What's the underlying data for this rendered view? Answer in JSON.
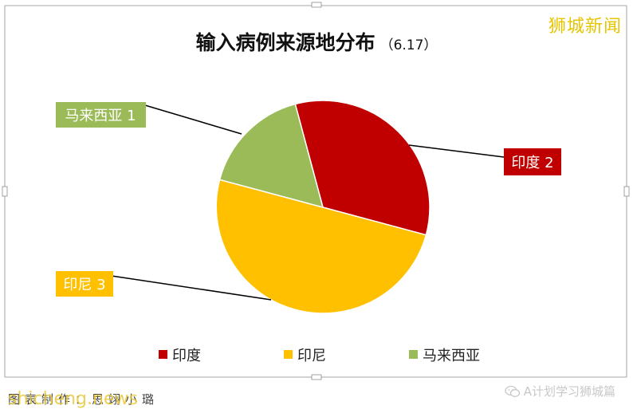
{
  "chart_data": {
    "type": "pie",
    "title": "输入病例来源地分布",
    "subtitle": "（6.17）",
    "categories": [
      "印度",
      "印尼",
      "马来西亚"
    ],
    "values": [
      2,
      3,
      1
    ],
    "callouts": [
      "印度 2",
      "印尼 3",
      "马来西亚 1"
    ],
    "legend_position": "bottom"
  },
  "colors": {
    "india": "#c00000",
    "indonesia": "#ffc000",
    "malaysia": "#9bbb59"
  },
  "watermark": {
    "top_right": "狮城新闻",
    "bottom_left": "shicheng.news",
    "bottom_right": "A计划学习狮城篇"
  },
  "footer": {
    "credit": "图表制作：思翊小璐"
  },
  "icons": {
    "wechat": "wechat-icon"
  }
}
